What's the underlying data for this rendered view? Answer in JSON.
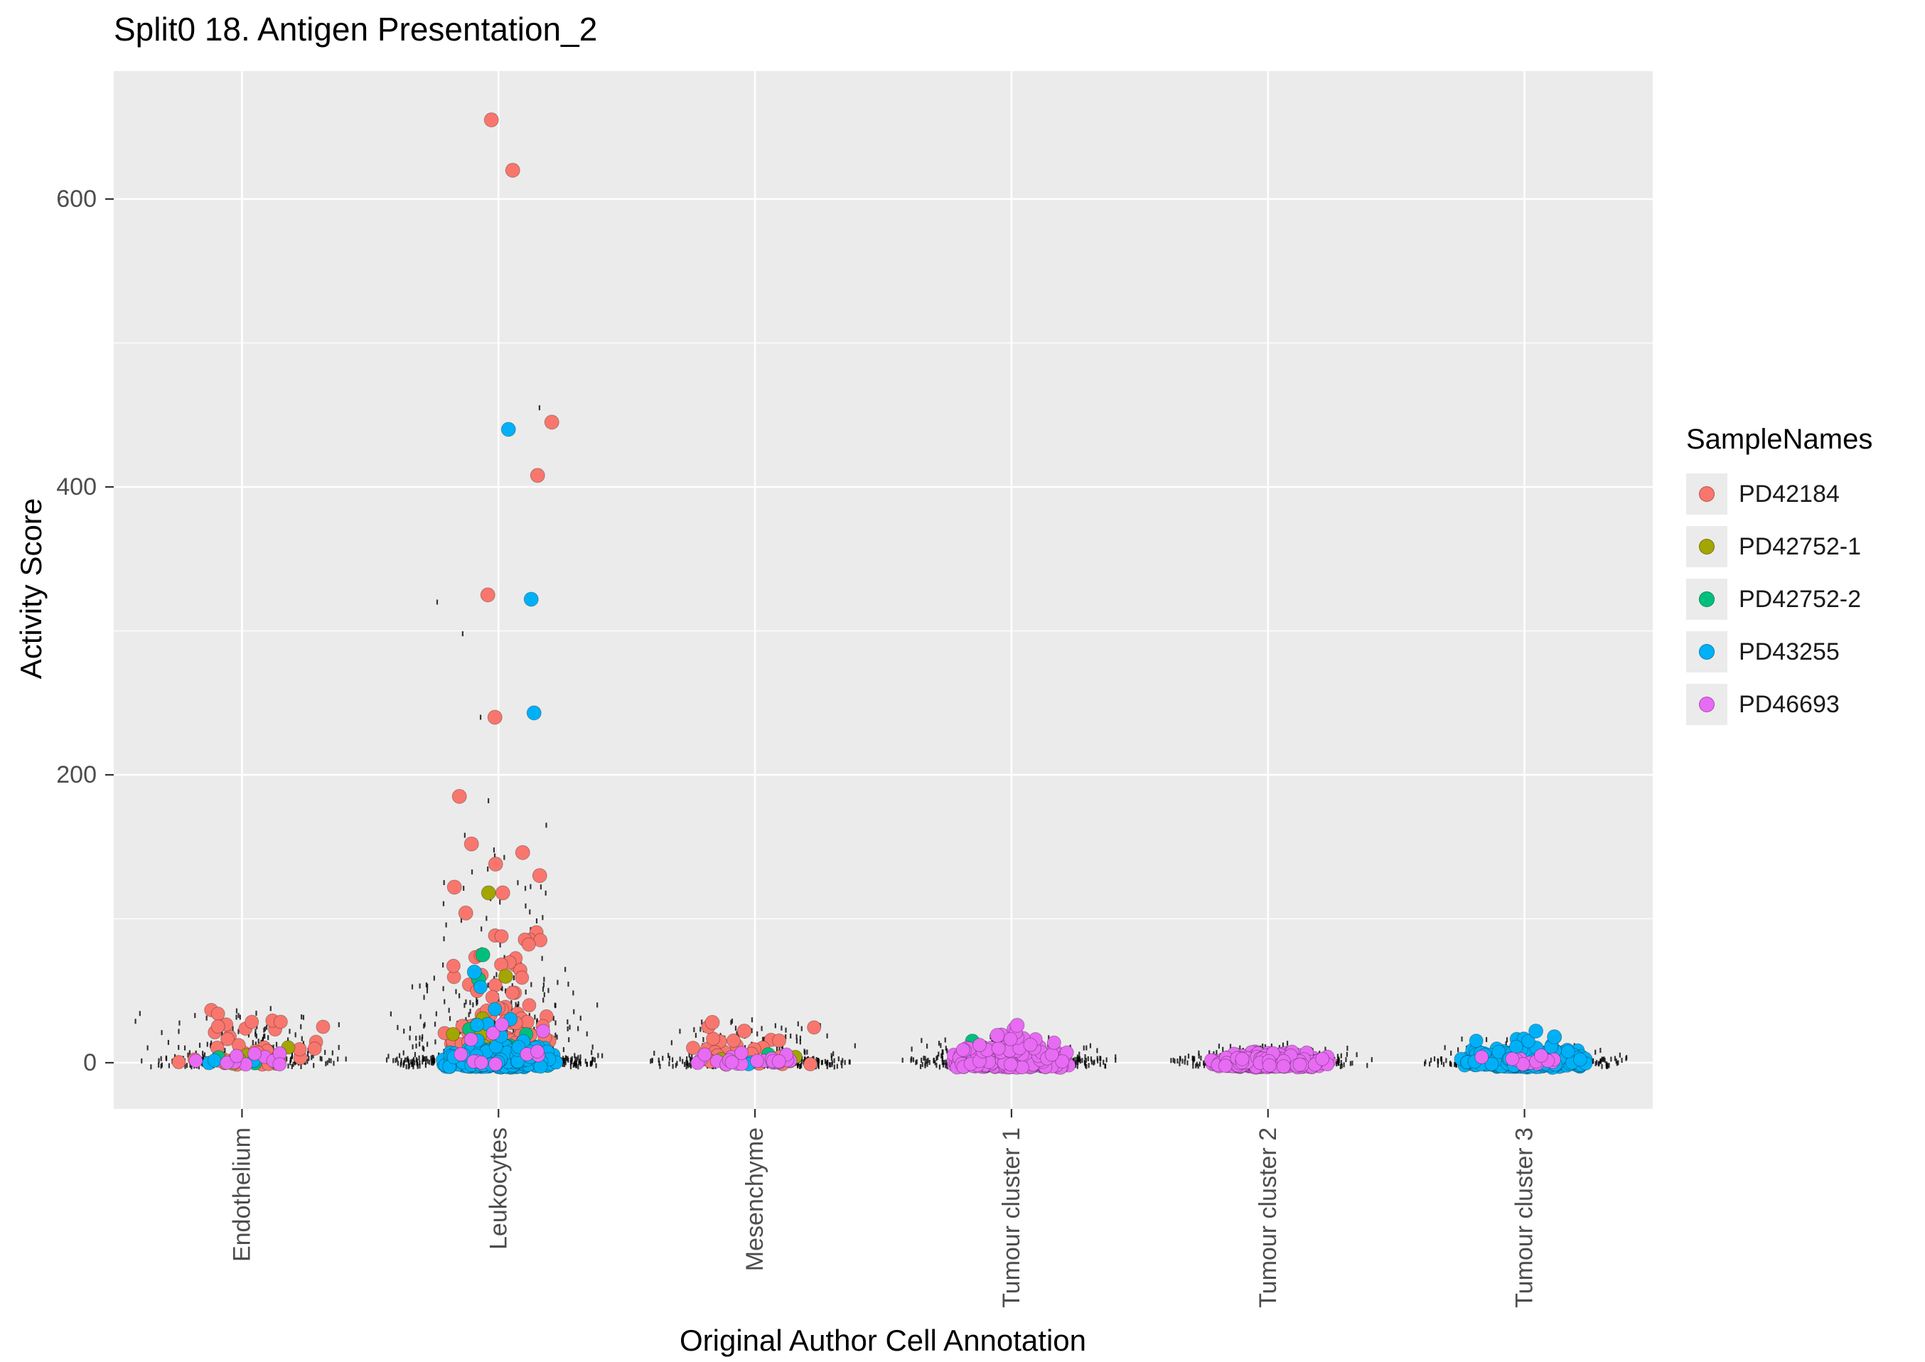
{
  "chart_data": {
    "type": "scatter",
    "title": "Split0 18. Antigen Presentation_2",
    "xlabel": "Original Author Cell Annotation",
    "ylabel": "Activity Score",
    "categories": [
      "Endothelium",
      "Leukocytes",
      "Mesenchyme",
      "Tumour cluster 1",
      "Tumour cluster 2",
      "Tumour cluster 3"
    ],
    "yticks": [
      0,
      200,
      400,
      600
    ],
    "y_minor": [
      100,
      300,
      500
    ],
    "ylim": [
      -35,
      690
    ],
    "grid": true,
    "panel_color": "#EBEBEB",
    "jitter_color": "#000000",
    "legend": {
      "title": "SampleNames",
      "position": "right"
    },
    "background_jitter": [
      {
        "cat": "Endothelium",
        "n": 330,
        "ymax": 38,
        "spread": 155,
        "sparse": [
          36,
          30
        ]
      },
      {
        "cat": "Leukocytes",
        "n": 680,
        "ymax": 60,
        "spread": 160,
        "tail": {
          "n": 55,
          "ymin": 40,
          "ymax": 148
        },
        "sparse": [
          455,
          320,
          298,
          240,
          182,
          165,
          158
        ]
      },
      {
        "cat": "Mesenchyme",
        "n": 400,
        "ymax": 30,
        "spread": 155,
        "sparse": [
          28,
          24
        ]
      },
      {
        "cat": "Tumour cluster 1",
        "n": 430,
        "ymax": 16,
        "spread": 155,
        "sparse": [
          15
        ]
      },
      {
        "cat": "Tumour cluster 2",
        "n": 380,
        "ymax": 12,
        "spread": 150,
        "sparse": []
      },
      {
        "cat": "Tumour cluster 3",
        "n": 420,
        "ymax": 14,
        "spread": 155,
        "sparse": [
          13
        ]
      }
    ],
    "series": [
      {
        "name": "PD42184",
        "color": "#F8766D",
        "clusters": [
          {
            "cat": "Endothelium",
            "n": 42,
            "ymin": 0,
            "ymax": 38,
            "pow": 2.6,
            "spread": 120
          },
          {
            "cat": "Leukocytes",
            "n": 95,
            "ymin": 0,
            "ymax": 20,
            "pow": 2.0,
            "spread": 95
          },
          {
            "cat": "Leukocytes",
            "n": 85,
            "ymin": 8,
            "ymax": 95,
            "pow": 2.2,
            "spread": 80
          },
          {
            "cat": "Mesenchyme",
            "n": 30,
            "ymin": 0,
            "ymax": 26,
            "pow": 2.5,
            "spread": 110
          },
          {
            "cat": "Tumour cluster 1",
            "n": 8,
            "ymin": 0,
            "ymax": 5,
            "pow": 2.0,
            "spread": 90
          },
          {
            "cat": "Tumour cluster 2",
            "n": 6,
            "ymin": 0,
            "ymax": 4,
            "pow": 2.0,
            "spread": 80
          }
        ],
        "outliers": [
          {
            "cat": "Leukocytes",
            "y": 655,
            "dx": -10
          },
          {
            "cat": "Leukocytes",
            "y": 620,
            "dx": 20
          },
          {
            "cat": "Leukocytes",
            "y": 445,
            "dx": 75
          },
          {
            "cat": "Leukocytes",
            "y": 408,
            "dx": 55
          },
          {
            "cat": "Leukocytes",
            "y": 325,
            "dx": -15
          },
          {
            "cat": "Leukocytes",
            "y": 240,
            "dx": -5
          },
          {
            "cat": "Leukocytes",
            "y": 185,
            "dx": -55
          },
          {
            "cat": "Leukocytes",
            "y": 152,
            "dx": -38
          },
          {
            "cat": "Leukocytes",
            "y": 146,
            "dx": 34
          },
          {
            "cat": "Leukocytes",
            "y": 138,
            "dx": -4
          },
          {
            "cat": "Leukocytes",
            "y": 130,
            "dx": 58
          },
          {
            "cat": "Leukocytes",
            "y": 122,
            "dx": -62
          },
          {
            "cat": "Leukocytes",
            "y": 118,
            "dx": 6
          },
          {
            "cat": "Leukocytes",
            "y": 104,
            "dx": -46
          },
          {
            "cat": "Mesenchyme",
            "y": 28,
            "dx": -60
          },
          {
            "cat": "Mesenchyme",
            "y": 22,
            "dx": -15
          }
        ]
      },
      {
        "name": "PD42752-1",
        "color": "#A3A500",
        "clusters": [
          {
            "cat": "Endothelium",
            "n": 6,
            "ymin": 0,
            "ymax": 12,
            "pow": 2.0,
            "spread": 80
          },
          {
            "cat": "Leukocytes",
            "n": 12,
            "ymin": 0,
            "ymax": 32,
            "pow": 2.2,
            "spread": 80
          },
          {
            "cat": "Mesenchyme",
            "n": 4,
            "ymin": 0,
            "ymax": 6,
            "pow": 2.0,
            "spread": 80
          }
        ],
        "outliers": [
          {
            "cat": "Leukocytes",
            "y": 118,
            "dx": -14
          },
          {
            "cat": "Leukocytes",
            "y": 60,
            "dx": 10
          }
        ]
      },
      {
        "name": "PD42752-2",
        "color": "#00BF7D",
        "clusters": [
          {
            "cat": "Endothelium",
            "n": 3,
            "ymin": 0,
            "ymax": 6,
            "pow": 2.0,
            "spread": 70
          },
          {
            "cat": "Leukocytes",
            "n": 10,
            "ymin": 0,
            "ymax": 24,
            "pow": 2.0,
            "spread": 75
          },
          {
            "cat": "Mesenchyme",
            "n": 4,
            "ymin": 0,
            "ymax": 6,
            "pow": 2.0,
            "spread": 80
          }
        ],
        "outliers": [
          {
            "cat": "Leukocytes",
            "y": 75,
            "dx": -22
          },
          {
            "cat": "Leukocytes",
            "y": 58,
            "dx": -28
          },
          {
            "cat": "Tumour cluster 1",
            "y": 15,
            "dx": -55
          }
        ]
      },
      {
        "name": "PD43255",
        "color": "#00B0F6",
        "clusters": [
          {
            "cat": "Endothelium",
            "n": 4,
            "ymin": 0,
            "ymax": 5,
            "pow": 2.0,
            "spread": 90
          },
          {
            "cat": "Leukocytes",
            "n": 270,
            "ymin": -2,
            "ymax": 11,
            "pow": 2.4,
            "spread": 88
          },
          {
            "cat": "Leukocytes",
            "n": 12,
            "ymin": 10,
            "ymax": 55,
            "pow": 2.0,
            "spread": 60
          },
          {
            "cat": "Mesenchyme",
            "n": 4,
            "ymin": 0,
            "ymax": 5,
            "pow": 2.0,
            "spread": 90
          },
          {
            "cat": "Tumour cluster 3",
            "n": 300,
            "ymin": -2,
            "ymax": 9,
            "pow": 2.4,
            "spread": 95
          },
          {
            "cat": "Tumour cluster 3",
            "n": 12,
            "ymin": 8,
            "ymax": 18,
            "pow": 2.0,
            "spread": 70
          }
        ],
        "outliers": [
          {
            "cat": "Leukocytes",
            "y": 440,
            "dx": 14
          },
          {
            "cat": "Leukocytes",
            "y": 322,
            "dx": 46
          },
          {
            "cat": "Leukocytes",
            "y": 243,
            "dx": 50
          },
          {
            "cat": "Leukocytes",
            "y": 63,
            "dx": -34
          },
          {
            "cat": "Tumour cluster 3",
            "y": 22,
            "dx": 16
          },
          {
            "cat": "Tumour cluster 3",
            "y": 18,
            "dx": 42
          }
        ]
      },
      {
        "name": "PD46693",
        "color": "#E76BF3",
        "clusters": [
          {
            "cat": "Endothelium",
            "n": 10,
            "ymin": 0,
            "ymax": 8,
            "pow": 2.0,
            "spread": 95
          },
          {
            "cat": "Leukocytes",
            "n": 12,
            "ymin": 0,
            "ymax": 28,
            "pow": 2.2,
            "spread": 80
          },
          {
            "cat": "Mesenchyme",
            "n": 22,
            "ymin": 0,
            "ymax": 7,
            "pow": 2.0,
            "spread": 100
          },
          {
            "cat": "Tumour cluster 1",
            "n": 330,
            "ymin": -2,
            "ymax": 11,
            "pow": 2.4,
            "spread": 95
          },
          {
            "cat": "Tumour cluster 1",
            "n": 25,
            "ymin": 8,
            "ymax": 22,
            "pow": 2.0,
            "spread": 75
          },
          {
            "cat": "Tumour cluster 2",
            "n": 270,
            "ymin": -2,
            "ymax": 7,
            "pow": 2.4,
            "spread": 90
          },
          {
            "cat": "Tumour cluster 3",
            "n": 12,
            "ymin": 0,
            "ymax": 4,
            "pow": 2.0,
            "spread": 80
          }
        ],
        "outliers": [
          {
            "cat": "Tumour cluster 1",
            "y": 26,
            "dx": 8
          },
          {
            "cat": "Tumour cluster 1",
            "y": 19,
            "dx": -20
          }
        ]
      }
    ]
  }
}
